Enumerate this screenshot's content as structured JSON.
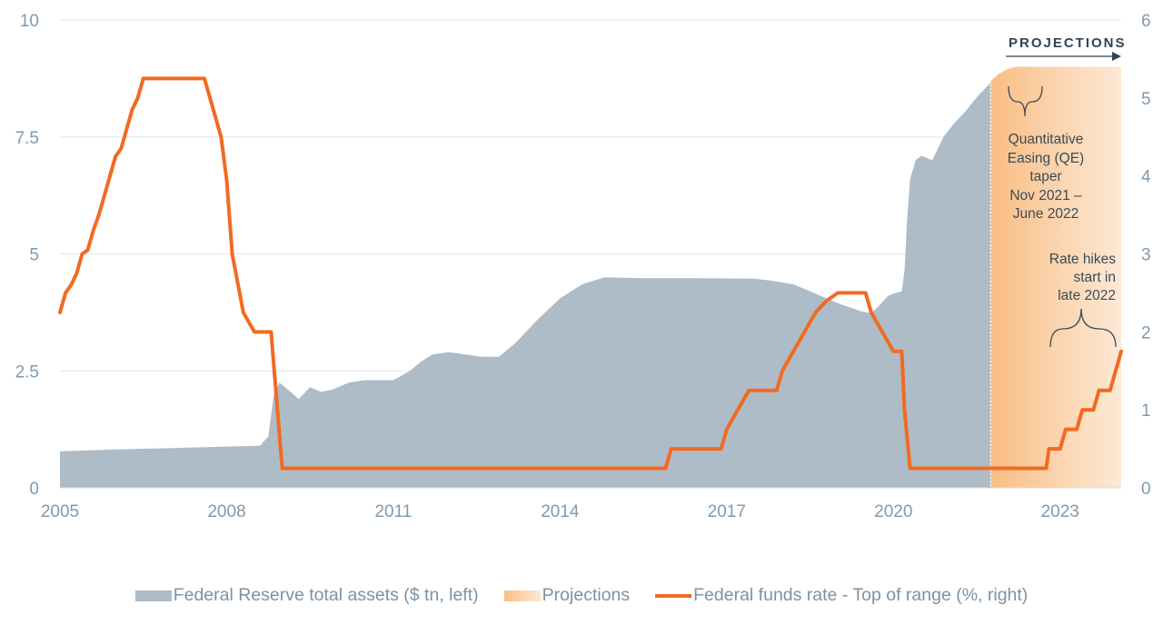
{
  "chart_data": {
    "type": "area+line",
    "x_ticks": [
      "2005",
      "2008",
      "2011",
      "2014",
      "2017",
      "2020",
      "2023"
    ],
    "x_range": [
      2005.0,
      2024.1
    ],
    "y_left_ticks": [
      "0",
      "2.5",
      "5",
      "7.5",
      "10"
    ],
    "y_left_range": [
      0,
      10
    ],
    "y_right_ticks": [
      "0",
      "1",
      "2",
      "3",
      "4",
      "5",
      "6"
    ],
    "y_right_range": [
      0,
      6
    ],
    "gridlines": "horizontal",
    "projection_start": 2021.75,
    "projection_label": "PROJECTIONS",
    "annotations": {
      "qe_taper": [
        "Quantitative",
        "Easing (QE)",
        "taper",
        "Nov 2021 –",
        "June 2022"
      ],
      "rate_hikes": [
        "Rate hikes",
        "start in",
        "late 2022"
      ]
    },
    "series": [
      {
        "name": "Federal Reserve total assets ($ tn, left)",
        "kind": "area",
        "color": "#aebcc7",
        "axis": "left",
        "x": [
          2005.0,
          2006.0,
          2007.0,
          2008.0,
          2008.6,
          2008.75,
          2008.85,
          2008.95,
          2009.15,
          2009.3,
          2009.5,
          2009.7,
          2009.9,
          2010.2,
          2010.5,
          2010.8,
          2011.0,
          2011.3,
          2011.5,
          2011.7,
          2012.0,
          2012.3,
          2012.6,
          2012.9,
          2013.2,
          2013.6,
          2014.0,
          2014.4,
          2014.8,
          2015.5,
          2016.5,
          2017.5,
          2017.8,
          2018.2,
          2018.6,
          2019.0,
          2019.4,
          2019.6,
          2019.75,
          2019.9,
          2020.0,
          2020.15,
          2020.2,
          2020.25,
          2020.3,
          2020.4,
          2020.5,
          2020.7,
          2020.9,
          2021.1,
          2021.3,
          2021.5,
          2021.7,
          2021.75
        ],
        "values": [
          0.78,
          0.82,
          0.85,
          0.88,
          0.9,
          1.1,
          2.0,
          2.25,
          2.05,
          1.9,
          2.15,
          2.05,
          2.1,
          2.25,
          2.3,
          2.3,
          2.3,
          2.5,
          2.7,
          2.85,
          2.9,
          2.85,
          2.8,
          2.8,
          3.1,
          3.6,
          4.05,
          4.35,
          4.5,
          4.48,
          4.48,
          4.47,
          4.43,
          4.35,
          4.15,
          3.95,
          3.78,
          3.73,
          3.9,
          4.1,
          4.15,
          4.2,
          4.65,
          5.8,
          6.6,
          7.0,
          7.1,
          7.0,
          7.5,
          7.8,
          8.05,
          8.35,
          8.6,
          8.65
        ]
      },
      {
        "name": "Projections",
        "kind": "area",
        "color": "#f9be84",
        "axis": "left",
        "x": [
          2021.75,
          2021.9,
          2022.05,
          2022.2,
          2022.35,
          2022.5,
          2024.1
        ],
        "values": [
          8.7,
          8.85,
          8.95,
          9.0,
          9.0,
          9.0,
          9.0
        ]
      },
      {
        "name": "Federal funds rate - Top of range (%, right)",
        "kind": "line",
        "color": "#f26a22",
        "axis": "right",
        "x": [
          2005.0,
          2005.1,
          2005.2,
          2005.3,
          2005.4,
          2005.5,
          2005.6,
          2005.7,
          2005.8,
          2005.9,
          2006.0,
          2006.1,
          2006.2,
          2006.3,
          2006.4,
          2006.5,
          2007.6,
          2007.7,
          2007.8,
          2007.9,
          2008.0,
          2008.1,
          2008.3,
          2008.5,
          2008.8,
          2009.0,
          2015.9,
          2016.0,
          2016.9,
          2017.0,
          2017.2,
          2017.4,
          2017.5,
          2017.9,
          2018.0,
          2018.2,
          2018.4,
          2018.6,
          2018.8,
          2019.0,
          2019.5,
          2019.6,
          2019.8,
          2020.0,
          2020.15,
          2020.2,
          2020.3,
          2021.75,
          2022.75,
          2022.8,
          2023.0,
          2023.1,
          2023.3,
          2023.4,
          2023.6,
          2023.7,
          2023.9,
          2024.0,
          2024.1
        ],
        "values": [
          2.25,
          2.5,
          2.6,
          2.75,
          3.0,
          3.05,
          3.3,
          3.5,
          3.75,
          4.0,
          4.25,
          4.35,
          4.6,
          4.85,
          5.0,
          5.25,
          5.25,
          5.0,
          4.75,
          4.5,
          3.95,
          3.0,
          2.25,
          2.0,
          2.0,
          0.25,
          0.25,
          0.5,
          0.5,
          0.75,
          1.0,
          1.25,
          1.25,
          1.25,
          1.5,
          1.75,
          2.0,
          2.25,
          2.4,
          2.5,
          2.5,
          2.25,
          2.0,
          1.75,
          1.75,
          1.0,
          0.25,
          0.25,
          0.25,
          0.5,
          0.5,
          0.75,
          0.75,
          1.0,
          1.0,
          1.25,
          1.25,
          1.5,
          1.75
        ]
      }
    ]
  }
}
